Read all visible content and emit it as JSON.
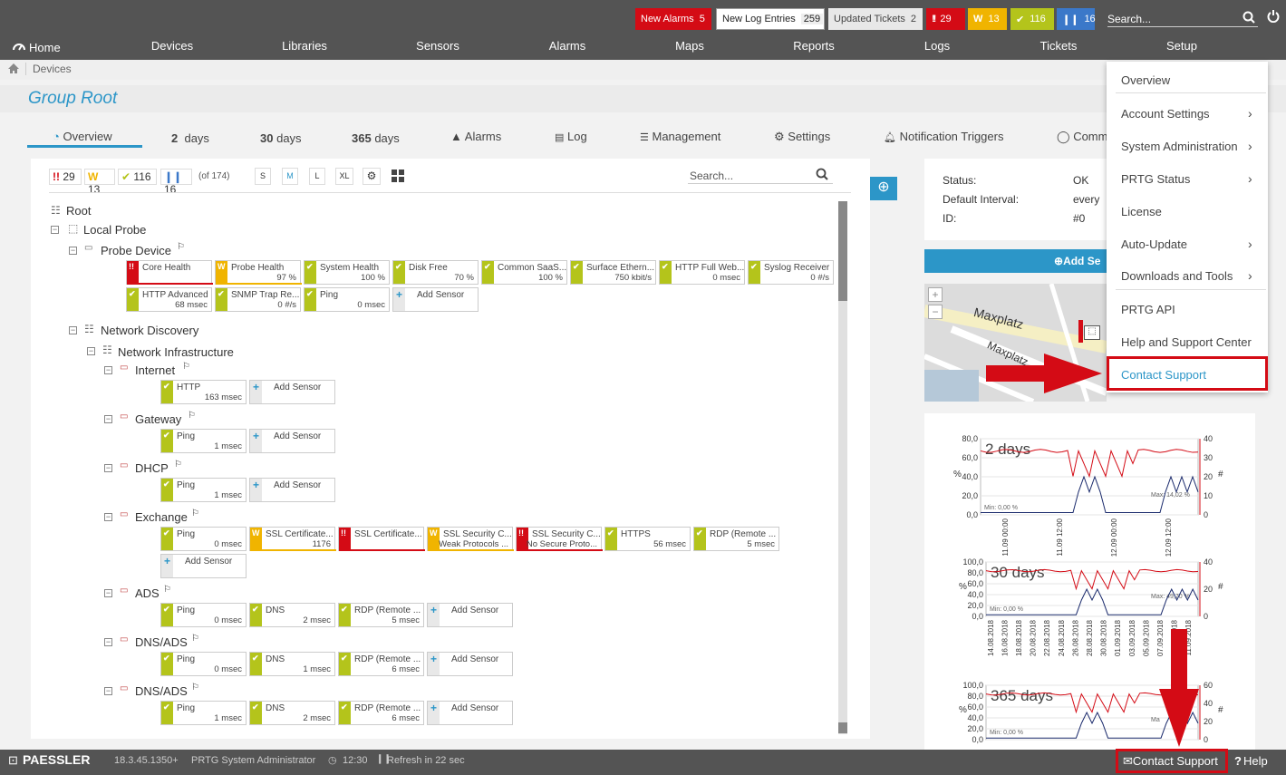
{
  "topbar": {
    "new_alarms_label": "New Alarms",
    "new_alarms_count": "5",
    "new_log_label": "New Log Entries",
    "new_log_count": "259",
    "updated_tickets_label": "Updated Tickets",
    "updated_tickets_count": "2",
    "red_count": "29",
    "yellow_count": "13",
    "green_count": "116",
    "blue_count": "16",
    "search_placeholder": "Search..."
  },
  "nav": {
    "home": "Home",
    "items": [
      "Devices",
      "Libraries",
      "Sensors",
      "Alarms",
      "Maps",
      "Reports",
      "Logs",
      "Tickets",
      "Setup"
    ]
  },
  "breadcrumb": {
    "item": "Devices"
  },
  "page": {
    "title": "Group Root"
  },
  "tabs": {
    "overview": "Overview",
    "d2_num": "2",
    "d2_unit": "days",
    "d30_num": "30",
    "d30_unit": "days",
    "d365_num": "365",
    "d365_unit": "days",
    "alarms": "Alarms",
    "log": "Log",
    "management": "Management",
    "settings": "Settings",
    "notification": "Notification Triggers",
    "comments": "Comm"
  },
  "filter": {
    "red": "29",
    "yellow": "13",
    "green": "116",
    "blue": "16",
    "of": "(of 174)",
    "sizes": [
      "S",
      "M",
      "L",
      "XL"
    ],
    "search_placeholder": "Search..."
  },
  "tree": {
    "root": "Root",
    "local_probe": "Local Probe",
    "probe_device": "Probe Device",
    "network_discovery": "Network Discovery",
    "network_infrastructure": "Network Infrastructure",
    "devices": [
      "Internet",
      "Gateway",
      "DHCP",
      "Exchange",
      "ADS",
      "DNS/ADS",
      "DNS/ADS"
    ]
  },
  "sensors": {
    "probe_row1": [
      {
        "name": "Core Health",
        "value": "",
        "status": "red"
      },
      {
        "name": "Probe Health",
        "value": "97 %",
        "status": "yellow"
      },
      {
        "name": "System Health",
        "value": "100 %",
        "status": "green"
      },
      {
        "name": "Disk Free",
        "value": "70 %",
        "status": "green"
      },
      {
        "name": "Common SaaS...",
        "value": "100 %",
        "status": "green"
      },
      {
        "name": "Surface Ethern...",
        "value": "750 kbit/s",
        "status": "green"
      },
      {
        "name": "HTTP Full Web...",
        "value": "0 msec",
        "status": "green"
      },
      {
        "name": "Syslog Receiver",
        "value": "0 #/s",
        "status": "green"
      }
    ],
    "probe_row2": [
      {
        "name": "HTTP Advanced",
        "value": "68 msec",
        "status": "green"
      },
      {
        "name": "SNMP Trap Re...",
        "value": "0 #/s",
        "status": "green"
      },
      {
        "name": "Ping",
        "value": "0 msec",
        "status": "green"
      },
      {
        "name": "Add Sensor",
        "value": "",
        "status": "add"
      }
    ],
    "internet": [
      {
        "name": "HTTP",
        "value": "163 msec",
        "status": "green"
      },
      {
        "name": "Add Sensor",
        "value": "",
        "status": "add"
      }
    ],
    "gateway": [
      {
        "name": "Ping",
        "value": "1 msec",
        "status": "green"
      },
      {
        "name": "Add Sensor",
        "value": "",
        "status": "add"
      }
    ],
    "dhcp": [
      {
        "name": "Ping",
        "value": "1 msec",
        "status": "green"
      },
      {
        "name": "Add Sensor",
        "value": "",
        "status": "add"
      }
    ],
    "exchange": [
      {
        "name": "Ping",
        "value": "0 msec",
        "status": "green"
      },
      {
        "name": "SSL Certificate...",
        "value": "1176",
        "status": "yellow"
      },
      {
        "name": "SSL Certificate...",
        "value": "",
        "status": "red"
      },
      {
        "name": "SSL Security C...",
        "value": "Weak Protocols ...",
        "status": "yellow"
      },
      {
        "name": "SSL Security C...",
        "value": "No Secure Proto...",
        "status": "red"
      },
      {
        "name": "HTTPS",
        "value": "56 msec",
        "status": "green"
      },
      {
        "name": "RDP (Remote ...",
        "value": "5 msec",
        "status": "green"
      }
    ],
    "exchange2": [
      {
        "name": "Add Sensor",
        "value": "",
        "status": "add"
      }
    ],
    "ads": [
      {
        "name": "Ping",
        "value": "0 msec",
        "status": "green"
      },
      {
        "name": "DNS",
        "value": "2 msec",
        "status": "green"
      },
      {
        "name": "RDP (Remote ...",
        "value": "5 msec",
        "status": "green"
      },
      {
        "name": "Add Sensor",
        "value": "",
        "status": "add"
      }
    ],
    "dnsads1": [
      {
        "name": "Ping",
        "value": "0 msec",
        "status": "green"
      },
      {
        "name": "DNS",
        "value": "1 msec",
        "status": "green"
      },
      {
        "name": "RDP (Remote ...",
        "value": "6 msec",
        "status": "green"
      },
      {
        "name": "Add Sensor",
        "value": "",
        "status": "add"
      }
    ],
    "dnsads2": [
      {
        "name": "Ping",
        "value": "1 msec",
        "status": "green"
      },
      {
        "name": "DNS",
        "value": "2 msec",
        "status": "green"
      },
      {
        "name": "RDP (Remote ...",
        "value": "6 msec",
        "status": "green"
      },
      {
        "name": "Add Sensor",
        "value": "",
        "status": "add"
      }
    ]
  },
  "status_panel": {
    "status_label": "Status:",
    "status_value": "OK",
    "interval_label": "Default Interval:",
    "interval_value": "every",
    "id_label": "ID:",
    "id_value": "#0",
    "add_button": "Add Se"
  },
  "map": {
    "street1": "Maxplatz",
    "street2": "Maxplatz"
  },
  "charts": {
    "c2": {
      "label": "2 days",
      "y_ticks": [
        "80,0",
        "60,0",
        "40,0",
        "20,0",
        "0,0"
      ],
      "y2_ticks": [
        "40",
        "30",
        "20",
        "10",
        "0"
      ],
      "x_ticks": [
        "11.09 00:00",
        "11.09 12:00",
        "12.09 00:00",
        "12.09 12:00"
      ],
      "min": "Min: 0,00 %",
      "max": "Max: 14,02 %"
    },
    "c30": {
      "label": "30 days",
      "y_ticks": [
        "100,0",
        "80,0",
        "60,0",
        "40,0",
        "20,0",
        "0,0"
      ],
      "y2_ticks": [
        "40",
        "20",
        "0"
      ],
      "x_ticks": [
        "14.08.2018",
        "16.08.2018",
        "18.08.2018",
        "20.08.2018",
        "22.08.2018",
        "24.08.2018",
        "26.08.2018",
        "28.08.2018",
        "30.08.2018",
        "01.09.2018",
        "03.09.2018",
        "05.09.2018",
        "07.09.2018",
        "09.09.2018",
        "11.09.2018"
      ],
      "min": "Min: 0,00 %",
      "max": "Max: 49,70 %"
    },
    "c365": {
      "label": "365 days",
      "y_ticks": [
        "100,0",
        "80,0",
        "60,0",
        "40,0",
        "20,0",
        "0,0"
      ],
      "y2_ticks": [
        "60",
        "40",
        "20",
        "0"
      ],
      "min": "Min: 0,00 %",
      "max": "Ma"
    },
    "y_unit": "%",
    "y2_unit": "#"
  },
  "setup_menu": {
    "items": [
      "Overview",
      "Account Settings",
      "System Administration",
      "PRTG Status",
      "License",
      "Auto-Update",
      "Downloads and Tools",
      "PRTG API",
      "Help and Support Center",
      "Contact Support"
    ]
  },
  "footer": {
    "brand": "PAESSLER",
    "version": "18.3.45.1350+",
    "user": "PRTG System Administrator",
    "time": "12:30",
    "refresh": "Refresh in 22 sec",
    "contact": "Contact Support",
    "help": "Help"
  },
  "colors": {
    "red": "#d40b15",
    "yellow": "#f0b400",
    "green": "#b4c41b",
    "blue": "#3b78c9",
    "accent": "#2c96c8",
    "topbar": "#545454"
  }
}
